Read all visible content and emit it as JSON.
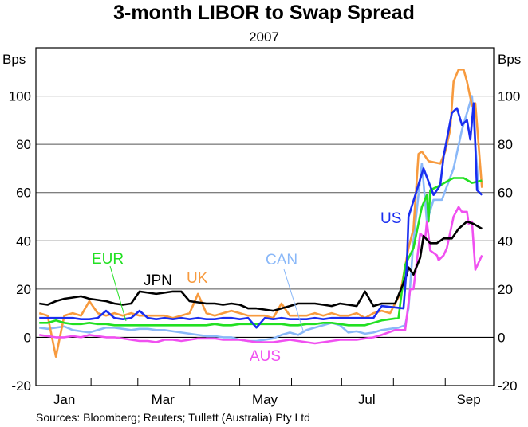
{
  "chart_data": {
    "type": "line",
    "title": "3-month LIBOR to Swap Spread",
    "subtitle": "2007",
    "ylabel_left": "Bps",
    "ylabel_right": "Bps",
    "ylim": [
      -20,
      120
    ],
    "yticks": [
      -20,
      0,
      20,
      40,
      60,
      80,
      100
    ],
    "xlim_day_of_year": [
      -2,
      272
    ],
    "month_ticks_day": [
      31,
      59,
      90,
      120,
      151,
      181,
      212,
      243
    ],
    "xtick_labels": [
      {
        "label": "Jan",
        "day": 15
      },
      {
        "label": "Mar",
        "day": 74
      },
      {
        "label": "May",
        "day": 135
      },
      {
        "label": "Jul",
        "day": 196
      },
      {
        "label": "Sep",
        "day": 257
      }
    ],
    "grid": true,
    "source": "Sources: Bloomberg; Reuters; Tullett (Australia) Pty Ltd",
    "series": [
      {
        "name": "CAN",
        "color": "#8ab8f8",
        "start_day": 0,
        "step": 5,
        "values": [
          4,
          3.5,
          4,
          4.5,
          3,
          2.5,
          2,
          3,
          4,
          4,
          3.5,
          3,
          3.5,
          3.5,
          3,
          3,
          2.5,
          2,
          1.5,
          1,
          0.5,
          0.5,
          0,
          0,
          -1,
          -1.5,
          -1.5,
          -1,
          -0.5,
          1,
          2,
          1,
          3,
          4,
          5,
          6,
          5,
          2,
          2.5,
          1.5,
          2,
          3
        ],
        "tail": [
          [
            215,
            4
          ],
          [
            219,
            5
          ],
          [
            221,
            12
          ],
          [
            224,
            40
          ],
          [
            229,
            72
          ],
          [
            232,
            48
          ],
          [
            236,
            57
          ],
          [
            241,
            57
          ],
          [
            248,
            70
          ],
          [
            253,
            86
          ],
          [
            259,
            100
          ],
          [
            263,
            61
          ]
        ]
      },
      {
        "name": "UK",
        "color": "#f79a3e",
        "start_day": 0,
        "step": 5,
        "values": [
          10,
          9,
          -8,
          9,
          10,
          9,
          15,
          10,
          9,
          10,
          9,
          10,
          9,
          9,
          9,
          9,
          8,
          9,
          10,
          18,
          10,
          9,
          10,
          11,
          10,
          9,
          9,
          9,
          8,
          14,
          9,
          9,
          9,
          10,
          9,
          10,
          9,
          9,
          10,
          8,
          10,
          11
        ],
        "tail": [
          [
            210,
            10
          ],
          [
            216,
            18
          ],
          [
            221,
            37
          ],
          [
            224,
            45
          ],
          [
            227,
            76
          ],
          [
            229,
            77
          ],
          [
            233,
            73
          ],
          [
            240,
            72
          ],
          [
            243,
            77
          ],
          [
            246,
            86
          ],
          [
            248,
            106
          ],
          [
            251,
            111
          ],
          [
            254,
            111
          ],
          [
            256,
            106
          ],
          [
            259,
            96
          ],
          [
            261,
            97
          ],
          [
            265,
            62
          ]
        ]
      },
      {
        "name": "AUS",
        "color": "#f050f0",
        "start_day": 0,
        "step": 5,
        "values": [
          1,
          0.5,
          0,
          0,
          0.5,
          0,
          1,
          0.5,
          0,
          0,
          -0.5,
          -1,
          -1.5,
          -1.5,
          -2,
          -1,
          -1,
          -1.5,
          -1,
          -0.5,
          -0.5,
          -0.5,
          -1,
          -1,
          -1,
          -1.5,
          -2,
          -2,
          -2,
          -1.5,
          -1,
          -1.5,
          -2,
          -2.5,
          -2,
          -1.5,
          -1,
          -1,
          -1,
          -0.5,
          0,
          1
        ],
        "tail": [
          [
            213,
            3
          ],
          [
            219,
            3
          ],
          [
            222,
            20
          ],
          [
            224,
            20
          ],
          [
            228,
            43
          ],
          [
            231,
            41
          ],
          [
            232,
            48
          ],
          [
            234,
            36
          ],
          [
            238,
            34
          ],
          [
            239,
            32
          ],
          [
            242,
            34
          ],
          [
            244,
            37
          ],
          [
            248,
            50
          ],
          [
            251,
            54
          ],
          [
            253,
            52
          ],
          [
            256,
            52
          ],
          [
            257,
            47
          ],
          [
            259,
            48
          ],
          [
            261,
            28
          ],
          [
            265,
            34
          ]
        ]
      },
      {
        "name": "EUR",
        "color": "#22e022",
        "start_day": 0,
        "step": 5,
        "values": [
          6,
          6,
          7,
          6,
          5.5,
          5.5,
          6,
          5.5,
          5.5,
          5,
          5,
          5,
          5,
          5,
          5,
          5,
          5,
          5,
          5,
          5,
          5,
          5.5,
          5,
          5,
          5.5,
          5.5,
          5.5,
          5.5,
          5.5,
          5.5,
          5,
          5,
          5.5,
          5.5,
          6,
          6,
          5.5,
          5,
          5,
          5,
          6,
          7
        ],
        "tail": [
          [
            215,
            8
          ],
          [
            219,
            30
          ],
          [
            224,
            37
          ],
          [
            229,
            54
          ],
          [
            232,
            59
          ],
          [
            233,
            48
          ],
          [
            234,
            61
          ],
          [
            240,
            63
          ],
          [
            245,
            65
          ],
          [
            248,
            66
          ],
          [
            254,
            66
          ],
          [
            259,
            64
          ],
          [
            265,
            65
          ]
        ]
      },
      {
        "name": "JPN",
        "color": "#000000",
        "start_day": 0,
        "step": 5,
        "values": [
          14,
          13.5,
          15,
          16,
          16.5,
          17,
          16,
          15.5,
          15,
          14,
          13.5,
          14,
          19,
          18.5,
          18,
          18.5,
          19,
          19,
          15,
          14.5,
          14,
          14,
          13.5,
          14,
          13.5,
          12,
          12,
          11.5,
          11,
          12,
          13,
          14,
          14,
          14,
          13.5,
          13,
          14,
          13.5,
          13,
          19,
          13,
          14
        ],
        "tail": [
          [
            213,
            14
          ],
          [
            220,
            26
          ],
          [
            221,
            29
          ],
          [
            224,
            26
          ],
          [
            228,
            33
          ],
          [
            230,
            42
          ],
          [
            234,
            39
          ],
          [
            238,
            39
          ],
          [
            242,
            41
          ],
          [
            247,
            41
          ],
          [
            251,
            45
          ],
          [
            256,
            48
          ],
          [
            260,
            47
          ],
          [
            265,
            45
          ]
        ]
      },
      {
        "name": "US",
        "color": "#1a2ef0",
        "start_day": 0,
        "step": 5,
        "values": [
          8,
          8,
          8,
          8,
          8,
          7.5,
          7.5,
          8,
          11,
          8,
          7.5,
          8,
          11,
          8,
          7.5,
          8,
          7.5,
          8,
          7.5,
          8,
          7.5,
          7.5,
          8,
          8,
          7.5,
          8,
          4,
          8,
          7.5,
          8,
          7.5,
          7.5,
          7.5,
          8,
          7.5,
          8,
          8,
          8,
          8,
          8,
          8,
          13
        ],
        "tail": [
          [
            218,
            12
          ],
          [
            220,
            30
          ],
          [
            221,
            50
          ],
          [
            226,
            61
          ],
          [
            230,
            70
          ],
          [
            236,
            59
          ],
          [
            240,
            63
          ],
          [
            242,
            75
          ],
          [
            247,
            93
          ],
          [
            250,
            95
          ],
          [
            253,
            88
          ],
          [
            256,
            90
          ],
          [
            258,
            82
          ],
          [
            260,
            97
          ],
          [
            262,
            61
          ],
          [
            265,
            59
          ]
        ]
      }
    ]
  }
}
